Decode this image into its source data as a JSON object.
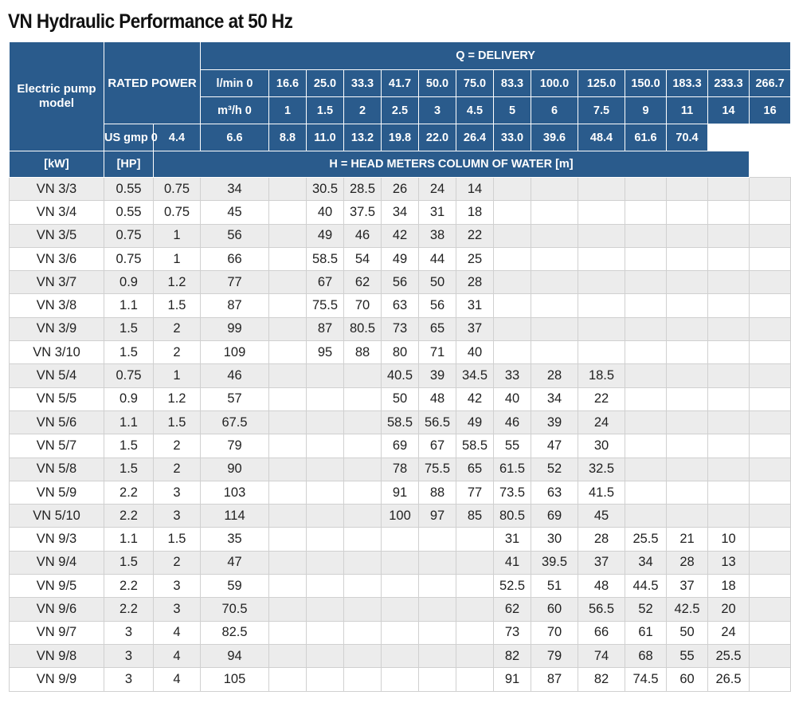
{
  "title": "VN Hydraulic Performance at 50 Hz",
  "header": {
    "model_col": "Electric pump model",
    "rated_power": "RATED POWER",
    "delivery": "Q = DELIVERY",
    "head": "H = HEAD METERS COLUMN OF WATER [m]",
    "unit_kw": "[kW]",
    "unit_hp": "[HP]",
    "flow_rows": [
      {
        "label": "l/min 0",
        "values": [
          "16.6",
          "25.0",
          "33.3",
          "41.7",
          "50.0",
          "75.0",
          "83.3",
          "100.0",
          "125.0",
          "150.0",
          "183.3",
          "233.3",
          "266.7"
        ]
      },
      {
        "label": "m³/h 0",
        "values": [
          "1",
          "1.5",
          "2",
          "2.5",
          "3",
          "4.5",
          "5",
          "6",
          "7.5",
          "9",
          "11",
          "14",
          "16"
        ]
      },
      {
        "label": "US gmp 0",
        "values": [
          "4.4",
          "6.6",
          "8.8",
          "11.0",
          "13.2",
          "19.8",
          "22.0",
          "26.4",
          "33.0",
          "39.6",
          "48.4",
          "61.6",
          "70.4"
        ]
      }
    ]
  },
  "rows": [
    {
      "model": "VN 3/3",
      "kw": "0.55",
      "hp": "0.75",
      "head": [
        "34",
        "",
        "30.5",
        "28.5",
        "26",
        "24",
        "14",
        "",
        "",
        "",
        "",
        "",
        "",
        ""
      ]
    },
    {
      "model": "VN 3/4",
      "kw": "0.55",
      "hp": "0.75",
      "head": [
        "45",
        "",
        "40",
        "37.5",
        "34",
        "31",
        "18",
        "",
        "",
        "",
        "",
        "",
        "",
        ""
      ]
    },
    {
      "model": "VN 3/5",
      "kw": "0.75",
      "hp": "1",
      "head": [
        "56",
        "",
        "49",
        "46",
        "42",
        "38",
        "22",
        "",
        "",
        "",
        "",
        "",
        "",
        ""
      ]
    },
    {
      "model": "VN 3/6",
      "kw": "0.75",
      "hp": "1",
      "head": [
        "66",
        "",
        "58.5",
        "54",
        "49",
        "44",
        "25",
        "",
        "",
        "",
        "",
        "",
        "",
        ""
      ]
    },
    {
      "model": "VN 3/7",
      "kw": "0.9",
      "hp": "1.2",
      "head": [
        "77",
        "",
        "67",
        "62",
        "56",
        "50",
        "28",
        "",
        "",
        "",
        "",
        "",
        "",
        ""
      ]
    },
    {
      "model": "VN 3/8",
      "kw": "1.1",
      "hp": "1.5",
      "head": [
        "87",
        "",
        "75.5",
        "70",
        "63",
        "56",
        "31",
        "",
        "",
        "",
        "",
        "",
        "",
        ""
      ]
    },
    {
      "model": "VN 3/9",
      "kw": "1.5",
      "hp": "2",
      "head": [
        "99",
        "",
        "87",
        "80.5",
        "73",
        "65",
        "37",
        "",
        "",
        "",
        "",
        "",
        "",
        ""
      ]
    },
    {
      "model": "VN 3/10",
      "kw": "1.5",
      "hp": "2",
      "head": [
        "109",
        "",
        "95",
        "88",
        "80",
        "71",
        "40",
        "",
        "",
        "",
        "",
        "",
        "",
        ""
      ]
    },
    {
      "model": "VN 5/4",
      "kw": "0.75",
      "hp": "1",
      "head": [
        "46",
        "",
        "",
        "",
        "40.5",
        "39",
        "34.5",
        "33",
        "28",
        "18.5",
        "",
        "",
        "",
        ""
      ]
    },
    {
      "model": "VN 5/5",
      "kw": "0.9",
      "hp": "1.2",
      "head": [
        "57",
        "",
        "",
        "",
        "50",
        "48",
        "42",
        "40",
        "34",
        "22",
        "",
        "",
        "",
        ""
      ]
    },
    {
      "model": "VN 5/6",
      "kw": "1.1",
      "hp": "1.5",
      "head": [
        "67.5",
        "",
        "",
        "",
        "58.5",
        "56.5",
        "49",
        "46",
        "39",
        "24",
        "",
        "",
        "",
        ""
      ]
    },
    {
      "model": "VN 5/7",
      "kw": "1.5",
      "hp": "2",
      "head": [
        "79",
        "",
        "",
        "",
        "69",
        "67",
        "58.5",
        "55",
        "47",
        "30",
        "",
        "",
        "",
        ""
      ]
    },
    {
      "model": "VN 5/8",
      "kw": "1.5",
      "hp": "2",
      "head": [
        "90",
        "",
        "",
        "",
        "78",
        "75.5",
        "65",
        "61.5",
        "52",
        "32.5",
        "",
        "",
        "",
        ""
      ]
    },
    {
      "model": "VN 5/9",
      "kw": "2.2",
      "hp": "3",
      "head": [
        "103",
        "",
        "",
        "",
        "91",
        "88",
        "77",
        "73.5",
        "63",
        "41.5",
        "",
        "",
        "",
        ""
      ]
    },
    {
      "model": "VN 5/10",
      "kw": "2.2",
      "hp": "3",
      "head": [
        "114",
        "",
        "",
        "",
        "100",
        "97",
        "85",
        "80.5",
        "69",
        "45",
        "",
        "",
        "",
        ""
      ]
    },
    {
      "model": "VN 9/3",
      "kw": "1.1",
      "hp": "1.5",
      "head": [
        "35",
        "",
        "",
        "",
        "",
        "",
        "",
        "31",
        "30",
        "28",
        "25.5",
        "21",
        "10",
        ""
      ]
    },
    {
      "model": "VN 9/4",
      "kw": "1.5",
      "hp": "2",
      "head": [
        "47",
        "",
        "",
        "",
        "",
        "",
        "",
        "41",
        "39.5",
        "37",
        "34",
        "28",
        "13",
        ""
      ]
    },
    {
      "model": "VN 9/5",
      "kw": "2.2",
      "hp": "3",
      "head": [
        "59",
        "",
        "",
        "",
        "",
        "",
        "",
        "52.5",
        "51",
        "48",
        "44.5",
        "37",
        "18",
        ""
      ]
    },
    {
      "model": "VN 9/6",
      "kw": "2.2",
      "hp": "3",
      "head": [
        "70.5",
        "",
        "",
        "",
        "",
        "",
        "",
        "62",
        "60",
        "56.5",
        "52",
        "42.5",
        "20",
        ""
      ]
    },
    {
      "model": "VN 9/7",
      "kw": "3",
      "hp": "4",
      "head": [
        "82.5",
        "",
        "",
        "",
        "",
        "",
        "",
        "73",
        "70",
        "66",
        "61",
        "50",
        "24",
        ""
      ]
    },
    {
      "model": "VN 9/8",
      "kw": "3",
      "hp": "4",
      "head": [
        "94",
        "",
        "",
        "",
        "",
        "",
        "",
        "82",
        "79",
        "74",
        "68",
        "55",
        "25.5",
        ""
      ]
    },
    {
      "model": "VN 9/9",
      "kw": "3",
      "hp": "4",
      "head": [
        "105",
        "",
        "",
        "",
        "",
        "",
        "",
        "91",
        "87",
        "82",
        "74.5",
        "60",
        "26.5",
        ""
      ]
    }
  ]
}
